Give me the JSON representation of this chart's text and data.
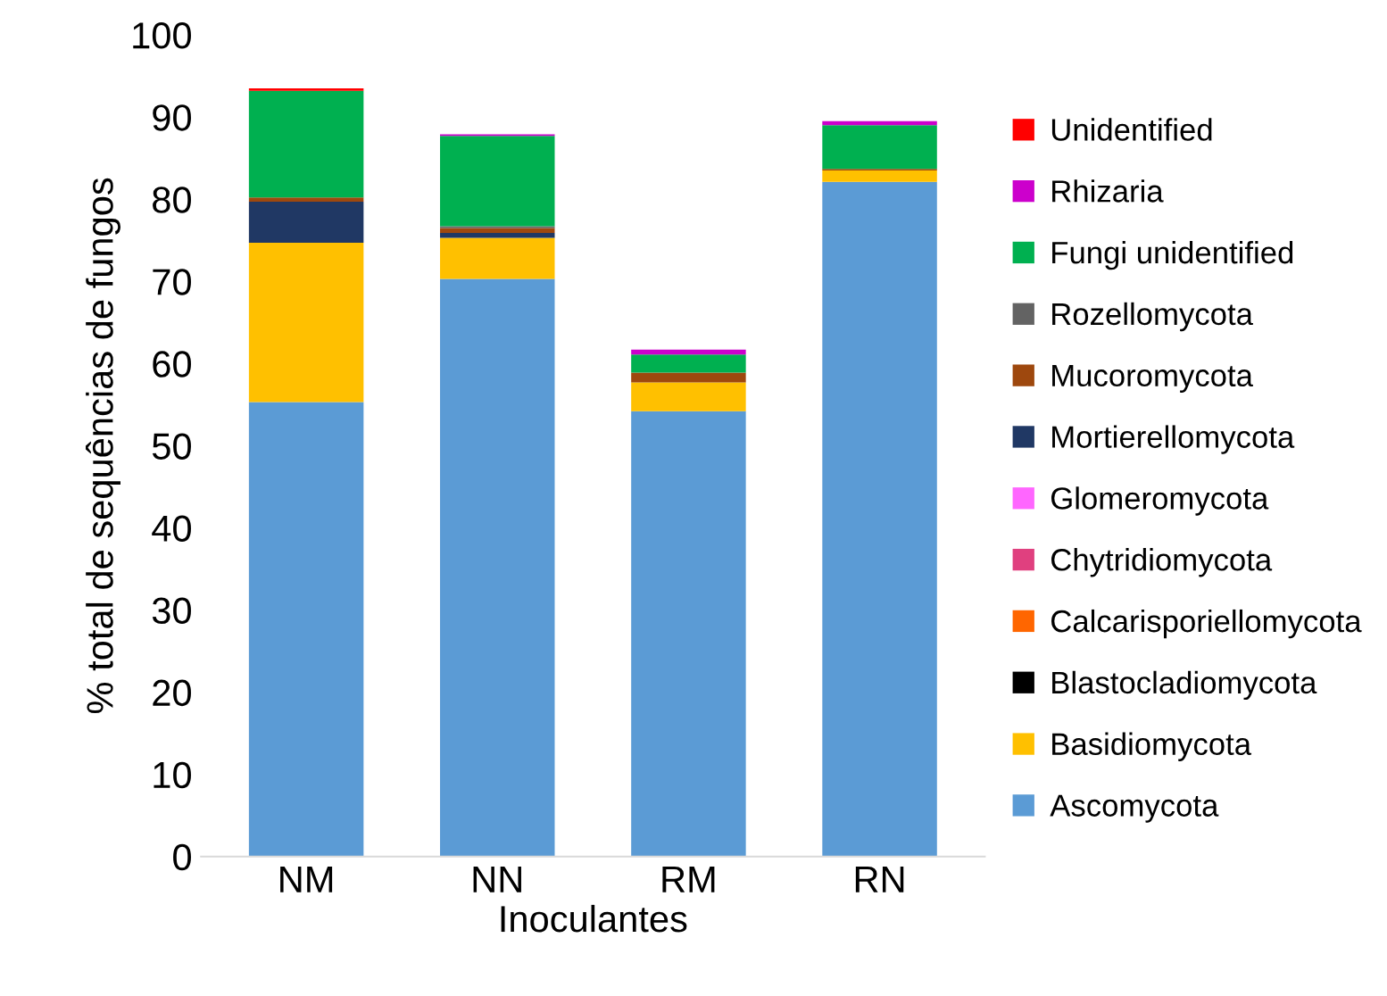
{
  "chart_data": {
    "type": "bar",
    "stacked": true,
    "xlabel": "Inoculantes",
    "ylabel": "% total de sequências de fungos",
    "categories": [
      "NM",
      "NN",
      "RM",
      "RN"
    ],
    "series": [
      {
        "name": "Ascomycota",
        "color": "#5b9bd5",
        "values": [
          55.3,
          70.3,
          54.2,
          82.1
        ]
      },
      {
        "name": "Basidiomycota",
        "color": "#ffc000",
        "values": [
          19.4,
          5.0,
          3.5,
          1.4
        ]
      },
      {
        "name": "Blastocladiomycota",
        "color": "#000000",
        "values": [
          0,
          0,
          0,
          0
        ]
      },
      {
        "name": "Calcarisporiellomycota",
        "color": "#ff6600",
        "values": [
          0,
          0,
          0,
          0
        ]
      },
      {
        "name": "Chytridiomycota",
        "color": "#e0407f",
        "values": [
          0,
          0,
          0,
          0
        ]
      },
      {
        "name": "Glomeromycota",
        "color": "#ff66ff",
        "values": [
          0,
          0,
          0,
          0
        ]
      },
      {
        "name": "Mortierellomycota",
        "color": "#203864",
        "values": [
          5.0,
          0.6,
          0,
          0
        ]
      },
      {
        "name": "Mucoromycota",
        "color": "#9e480e",
        "values": [
          0.5,
          0.6,
          1.2,
          0.2
        ]
      },
      {
        "name": "Rozellomycota",
        "color": "#636363",
        "values": [
          0,
          0.2,
          0,
          0
        ]
      },
      {
        "name": "Fungi unidentified",
        "color": "#00b050",
        "values": [
          13.0,
          11.0,
          2.2,
          5.3
        ]
      },
      {
        "name": "Rhizaria",
        "color": "#cc00cc",
        "values": [
          0,
          0.2,
          0.6,
          0.5
        ]
      },
      {
        "name": "Unidentified",
        "color": "#ff0000",
        "values": [
          0.3,
          0,
          0,
          0
        ]
      }
    ],
    "ylim": [
      0,
      100
    ],
    "yticks": [
      0,
      10,
      20,
      30,
      40,
      50,
      60,
      70,
      80,
      90,
      100
    ],
    "grid": false,
    "legend": "right"
  }
}
